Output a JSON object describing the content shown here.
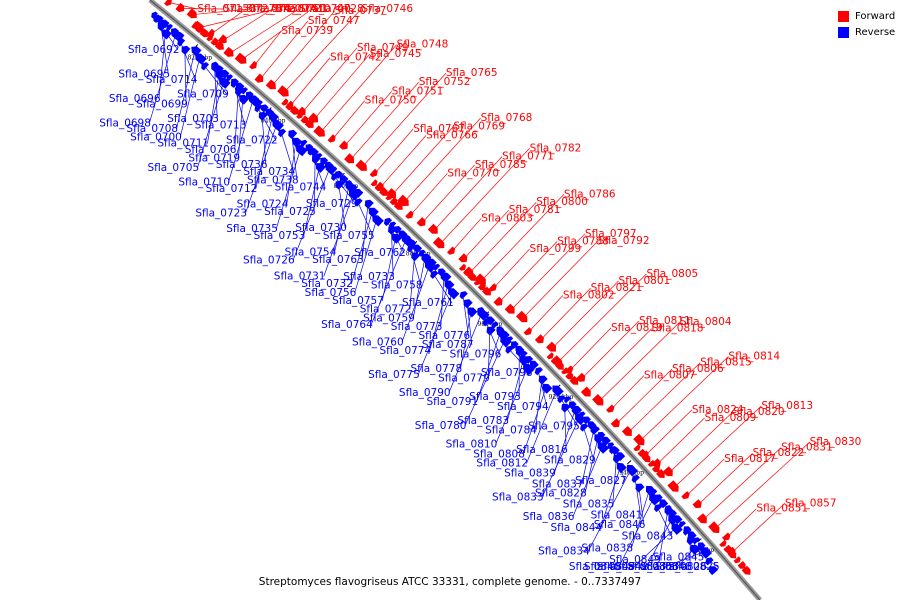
{
  "caption": "Streptomyces flavogriseus ATCC 33331, complete genome. - 0..7337497",
  "legend": {
    "items": [
      {
        "label": "Forward",
        "color": "#ff0000"
      },
      {
        "label": "Reverse",
        "color": "#0000ff"
      }
    ]
  },
  "colors": {
    "forward": "#ff0000",
    "reverse": "#0000ff",
    "backbone": "#777777",
    "lines_fwd": "#ff0000",
    "lines_rev": "#0000ff"
  },
  "scale_ticks": [
    "820 kbp",
    "840 kbp",
    "860 kbp",
    "880 kbp",
    "900 kbp",
    "920 kbp",
    "940 kbp",
    "960 kbp"
  ],
  "forward_labels": [
    "Sfla_0715",
    "Sfla_0727",
    "Sfla_0720",
    "Sfla_0721",
    "Sfla_0743",
    "Sfla_0741",
    "Sfla_0740",
    "Sfla_0728",
    "Sfla_0739",
    "Sfla_0747",
    "Sfla_0737",
    "Sfla_0746",
    "Sfla_0742",
    "Sfla_0749",
    "Sfla_0745",
    "Sfla_0748",
    "Sfla_0750",
    "Sfla_0751",
    "Sfla_0752",
    "Sfla_0765",
    "Sfla_0767",
    "Sfla_0766",
    "Sfla_0769",
    "Sfla_0768",
    "Sfla_0770",
    "Sfla_0785",
    "Sfla_0771",
    "Sfla_0782",
    "Sfla_0803",
    "Sfla_0781",
    "Sfla_0800",
    "Sfla_0786",
    "Sfla_0799",
    "Sfla_0788",
    "Sfla_0797",
    "Sfla_0792",
    "Sfla_0802",
    "Sfla_0821",
    "Sfla_0801",
    "Sfla_0805",
    "Sfla_0819",
    "Sfla_0811",
    "Sfla_0818",
    "Sfla_0804",
    "Sfla_0807",
    "Sfla_0806",
    "Sfla_0815",
    "Sfla_0814",
    "Sfla_0824",
    "Sfla_0809",
    "Sfla_0820",
    "Sfla_0813",
    "Sfla_0817",
    "Sfla_0822",
    "Sfla_0831",
    "Sfla_0830",
    "Sfla_0851",
    "Sfla_0857"
  ],
  "reverse_labels": [
    "Sfla_0692",
    "Sfla_0695",
    "Sfla_0696",
    "Sfla_0698",
    "Sfla_0714",
    "Sfla_0699",
    "Sfla_0708",
    "Sfla_0700",
    "Sfla_0709",
    "Sfla_0703",
    "Sfla_0711",
    "Sfla_0705",
    "Sfla_0713",
    "Sfla_0706",
    "Sfla_0719",
    "Sfla_0710",
    "Sfla_0722",
    "Sfla_0736",
    "Sfla_0712",
    "Sfla_0723",
    "Sfla_0734",
    "Sfla_0738",
    "Sfla_0724",
    "Sfla_0735",
    "Sfla_0744",
    "Sfla_0725",
    "Sfla_0753",
    "Sfla_0726",
    "Sfla_0729",
    "Sfla_0730",
    "Sfla_0754",
    "Sfla_0731",
    "Sfla_0755",
    "Sfla_0763",
    "Sfla_0732",
    "Sfla_0756",
    "Sfla_0762",
    "Sfla_0733",
    "Sfla_0757",
    "Sfla_0764",
    "Sfla_0758",
    "Sfla_0772",
    "Sfla_0759",
    "Sfla_0760",
    "Sfla_0761",
    "Sfla_0773",
    "Sfla_0774",
    "Sfla_0775",
    "Sfla_0776",
    "Sfla_0787",
    "Sfla_0778",
    "Sfla_0790",
    "Sfla_0796",
    "Sfla_0779",
    "Sfla_0791",
    "Sfla_0780",
    "Sfla_0798",
    "Sfla_0793",
    "Sfla_0783",
    "Sfla_0810",
    "Sfla_0794",
    "Sfla_0784",
    "Sfla_0808",
    "Sfla_0812",
    "Sfla_0795",
    "Sfla_0816",
    "Sfla_0839",
    "Sfla_0833",
    "Sfla_0829",
    "Sfla_0837",
    "Sfla_0828",
    "Sfla_0836",
    "Sfla_0827",
    "Sfla_0835",
    "Sfla_0844",
    "Sfla_0834",
    "Sfla_0841",
    "Sfla_0846",
    "Sfla_0838",
    "Sfla_0840",
    "Sfla_0843",
    "Sfla_0849",
    "Sfla_0842",
    "Sfla_0847",
    "Sfla_0845",
    "Sfla_0848",
    "Sfla_0853",
    "Sfla_0823",
    "Sfla_0825",
    "Sfla_0826"
  ]
}
